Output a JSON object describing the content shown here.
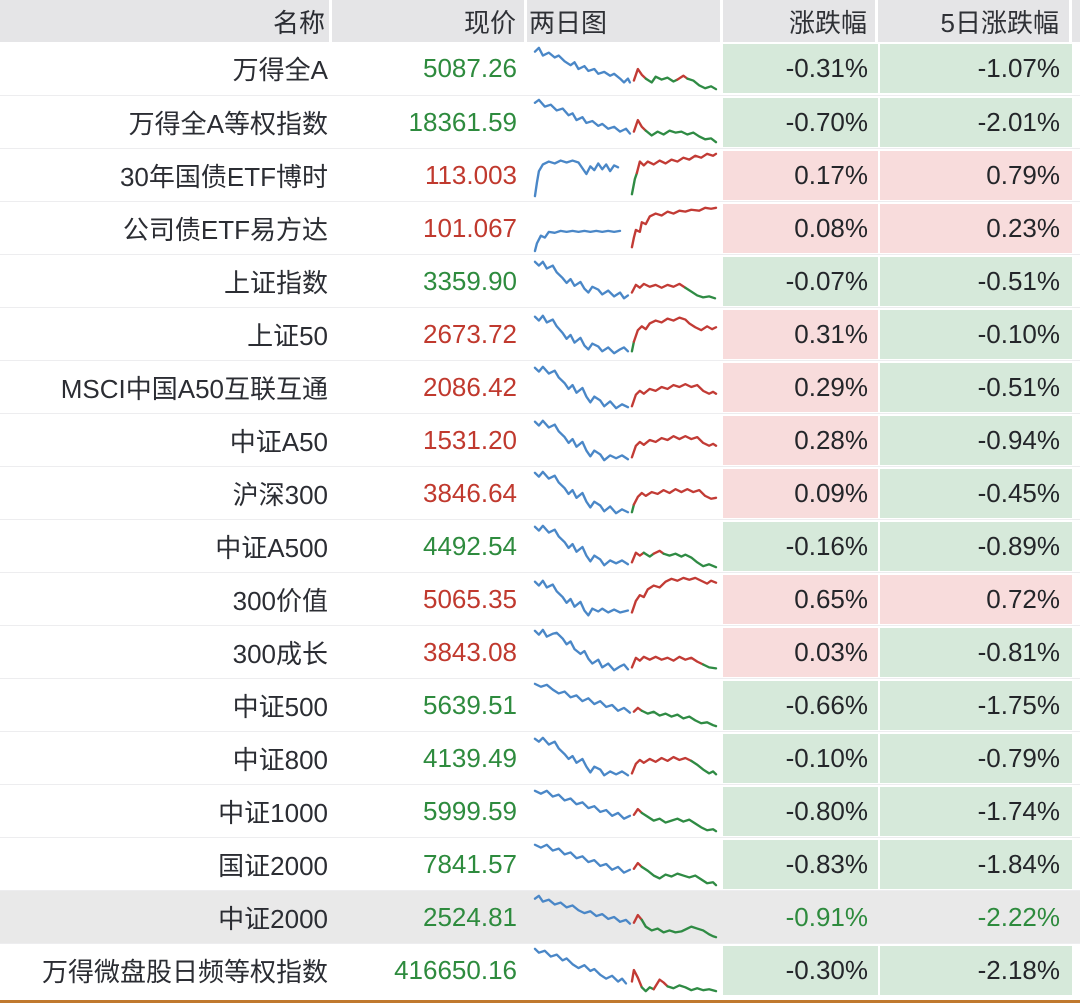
{
  "header": {
    "columns": [
      "名称",
      "现价",
      "两日图",
      "涨跌幅",
      "5日涨跌幅"
    ]
  },
  "colors": {
    "up_text": "#c0392e",
    "down_text": "#2e8b3e",
    "up_bg": "#f8dcdc",
    "down_bg": "#d6e9da",
    "header_bg": "#e5e5e7",
    "highlight_row_bg": "#e9e9e9",
    "bottom_border": "#c0792f",
    "spark_blue": "#4a87c7",
    "spark_red": "#c23b35",
    "spark_green": "#2f8b44"
  },
  "rows": [
    {
      "name": "万得全A",
      "price": "5087.26",
      "price_dir": "down",
      "chg": "-0.31%",
      "chg_dir": "down",
      "chg5": "-1.07%",
      "chg5_dir": "down",
      "highlighted": false,
      "spark": [
        {
          "c": "b",
          "p": "6,8 10,4 14,12 20,9 26,14 30,12 36,18 42,22 46,19 50,26 56,23 60,28 66,26 70,31 76,29 82,33 86,31 92,36 96,40 100,36 102,40"
        },
        {
          "c": "r",
          "p": "106,38 110,26 114,32 118,36"
        },
        {
          "c": "g",
          "p": "118,36 124,40 128,34 134,37 140,35 146,39 150,37"
        },
        {
          "c": "r",
          "p": "150,37 156,33 160,36"
        },
        {
          "c": "g",
          "p": "160,36 166,38 172,43 178,46 184,44 189,47"
        }
      ]
    },
    {
      "name": "万得全A等权指数",
      "price": "18361.59",
      "price_dir": "down",
      "chg": "-0.70%",
      "chg_dir": "down",
      "chg5": "-2.01%",
      "chg5_dir": "down",
      "highlighted": false,
      "spark": [
        {
          "c": "b",
          "p": "6,6 10,3 16,10 22,8 28,14 34,12 40,19 44,17 48,24 54,21 58,27 64,25 70,30 74,28 80,33 86,31 92,36 98,33 102,38"
        },
        {
          "c": "r",
          "p": "106,36 110,24 114,31 118,35"
        },
        {
          "c": "g",
          "p": "118,35 124,40 130,36 136,39 142,35 148,37 154,36 160,39 166,37 172,41 178,44 184,43 189,47"
        }
      ]
    },
    {
      "name": "30年国债ETF博时",
      "price": "113.003",
      "price_dir": "up",
      "chg": "0.17%",
      "chg_dir": "up",
      "chg5": "0.79%",
      "chg5_dir": "up",
      "highlighted": false,
      "spark": [
        {
          "c": "b",
          "p": "6,48 8,34 10,22 14,15 20,12 26,14 32,11 38,13 44,11 50,13 54,19 58,25 62,17 66,21 70,14 74,20 78,15 82,22 86,16 90,18"
        },
        {
          "c": "g",
          "p": "104,46 107,30 109,24"
        },
        {
          "c": "r",
          "p": "109,24 112,12 116,16 120,12 126,15 132,11 138,14 144,10 150,12 156,8 162,10 168,6 174,8 180,4 186,6 189,4"
        }
      ]
    },
    {
      "name": "公司债ETF易方达",
      "price": "101.067",
      "price_dir": "up",
      "chg": "0.08%",
      "chg_dir": "up",
      "chg5": "0.23%",
      "chg5_dir": "up",
      "highlighted": false,
      "spark": [
        {
          "c": "b",
          "p": "6,50 8,42 12,34 16,36 20,30 26,31 32,29 38,30 44,29 50,30 56,29 62,30 68,29 74,30 80,29 86,30 92,29"
        },
        {
          "c": "r",
          "p": "104,46 106,36 108,28 112,30 114,20 118,22 122,14 128,11 134,13 140,9 146,11 152,8 158,9 164,7 172,8 178,5 184,6 189,5"
        }
      ]
    },
    {
      "name": "上证指数",
      "price": "3359.90",
      "price_dir": "down",
      "chg": "-0.07%",
      "chg_dir": "down",
      "chg5": "-0.51%",
      "chg5_dir": "down",
      "highlighted": false,
      "spark": [
        {
          "c": "b",
          "p": "6,6 10,10 14,6 18,13 24,10 28,17 34,23 38,28 42,24 46,31 52,27 56,34 60,38 64,32 70,35 74,40 80,36 86,42 92,38 96,44 100,41"
        },
        {
          "c": "r",
          "p": "104,38 108,30 112,33 116,29 122,32 128,30 134,33 140,30 146,32 152,29 158,33"
        },
        {
          "c": "g",
          "p": "158,33 164,37 170,41 176,43 182,42 188,44"
        }
      ]
    },
    {
      "name": "上证50",
      "price": "2673.72",
      "price_dir": "up",
      "chg": "0.31%",
      "chg_dir": "up",
      "chg5": "-0.10%",
      "chg5_dir": "down",
      "highlighted": false,
      "spark": [
        {
          "c": "b",
          "p": "6,8 10,12 14,7 18,14 24,11 28,18 34,25 38,31 42,27 46,35 52,30 56,38 60,42 64,36 70,39 74,44 80,40 86,46 92,42 96,40 100,44"
        },
        {
          "c": "g",
          "p": "104,44 106,34"
        },
        {
          "c": "r",
          "p": "106,34 110,22 114,18 118,21 122,15 128,12 134,14 140,10 146,12 152,9 158,11 162,15 168,19 174,22 180,18 185,21 189,19"
        }
      ]
    },
    {
      "name": "MSCI中国A50互联互通",
      "price": "2086.42",
      "price_dir": "up",
      "chg": "0.29%",
      "chg_dir": "up",
      "chg5": "-0.51%",
      "chg5_dir": "down",
      "highlighted": false,
      "spark": [
        {
          "c": "b",
          "p": "6,6 10,10 14,5 20,12 26,9 30,16 36,22 40,28 44,24 48,32 54,27 58,36 62,42 66,36 72,40 76,46 82,41 88,48 94,44 100,47"
        },
        {
          "c": "r",
          "p": "104,46 108,34 112,30 116,33 122,28 128,30 134,26 140,28 146,24 152,26 158,23 164,26 170,24 176,30 182,33 186,31 189,33"
        }
      ]
    },
    {
      "name": "中证A50",
      "price": "1531.20",
      "price_dir": "up",
      "chg": "0.28%",
      "chg_dir": "up",
      "chg5": "-0.94%",
      "chg5_dir": "down",
      "highlighted": false,
      "spark": [
        {
          "c": "b",
          "p": "6,7 10,11 14,6 20,13 26,10 30,17 36,23 40,29 44,25 48,33 54,28 58,37 62,43 66,37 72,41 76,47 82,42 88,45 94,42 100,46"
        },
        {
          "c": "r",
          "p": "104,44 108,32 112,28 116,31 122,26 128,28 134,24 140,26 146,22 152,25 158,22 164,25 170,23 176,29 182,32 186,30 189,32"
        }
      ]
    },
    {
      "name": "沪深300",
      "price": "3846.64",
      "price_dir": "up",
      "chg": "0.09%",
      "chg_dir": "up",
      "chg5": "-0.45%",
      "chg5_dir": "down",
      "highlighted": false,
      "spark": [
        {
          "c": "b",
          "p": "6,5 10,9 14,4 20,11 26,8 30,15 36,21 40,27 44,23 48,31 54,26 58,35 62,41 66,35 72,39 76,45 82,40 88,47 94,43 100,46"
        },
        {
          "c": "g",
          "p": "104,46 106,38"
        },
        {
          "c": "r",
          "p": "106,38 110,30 114,26 118,29 124,25 130,27 136,23 142,26 148,22 154,25 160,22 166,25 172,23 178,29 184,32 189,31"
        }
      ]
    },
    {
      "name": "中证A500",
      "price": "4492.54",
      "price_dir": "down",
      "chg": "-0.16%",
      "chg_dir": "down",
      "chg5": "-0.89%",
      "chg5_dir": "down",
      "highlighted": false,
      "spark": [
        {
          "c": "b",
          "p": "6,6 10,10 14,5 20,12 26,9 30,16 36,22 40,28 44,24 48,32 54,27 58,36 62,42 66,36 72,40 76,46 82,41 88,44 94,41 100,45"
        },
        {
          "c": "r",
          "p": "104,43 108,33 112,36 116,33"
        },
        {
          "c": "g",
          "p": "116,33 122,37 126,34"
        },
        {
          "c": "r",
          "p": "126,34 132,31 136,34"
        },
        {
          "c": "g",
          "p": "136,34 142,36 148,34 154,37 158,35 164,38 170,43 176,47 182,45 189,48"
        }
      ]
    },
    {
      "name": "300价值",
      "price": "5065.35",
      "price_dir": "up",
      "chg": "0.65%",
      "chg_dir": "up",
      "chg5": "0.72%",
      "chg5_dir": "up",
      "highlighted": false,
      "spark": [
        {
          "c": "b",
          "p": "6,8 10,12 14,7 18,14 24,11 28,18 34,24 38,30 42,26 46,34 52,29 56,38 60,43 64,36 70,39 74,36 80,40 86,37 92,40 100,38"
        },
        {
          "c": "r",
          "p": "104,40 108,28 112,22 116,24 120,16 126,12 132,14 138,8 144,5 150,7 156,4 162,6 168,4 174,7 180,10 184,7 189,9"
        }
      ]
    },
    {
      "name": "300成长",
      "price": "3843.08",
      "price_dir": "up",
      "chg": "0.03%",
      "chg_dir": "up",
      "chg5": "-0.81%",
      "chg5_dir": "down",
      "highlighted": false,
      "spark": [
        {
          "c": "b",
          "p": "6,4 10,8 14,3 18,10 24,7 28,6 34,12 38,18 42,15 46,23 52,28 56,25 60,33 64,38 70,34 74,42 80,38 86,45 92,41 96,39 100,44"
        },
        {
          "c": "r",
          "p": "104,42 108,32 112,35 116,31 122,34 128,31 134,34 140,32 146,35 152,31 158,34 164,32 170,36 176,39"
        },
        {
          "c": "g",
          "p": "176,39 182,42 189,43"
        }
      ]
    },
    {
      "name": "中证500",
      "price": "5639.51",
      "price_dir": "down",
      "chg": "-0.66%",
      "chg_dir": "down",
      "chg5": "-1.75%",
      "chg5_dir": "down",
      "highlighted": false,
      "spark": [
        {
          "c": "b",
          "p": "6,4 12,7 18,5 24,10 30,14 36,12 42,18 48,16 54,22 60,19 66,25 72,22 78,28 84,26 90,32 96,29 102,34"
        },
        {
          "c": "r",
          "p": "106,33 110,29 114,32"
        },
        {
          "c": "g",
          "p": "114,32 120,35 126,33 132,37 138,35 144,38 150,36 156,40 162,38 168,42 174,45 180,44 186,47 189,48"
        }
      ]
    },
    {
      "name": "中证800",
      "price": "4139.49",
      "price_dir": "down",
      "chg": "-0.10%",
      "chg_dir": "down",
      "chg5": "-0.79%",
      "chg5_dir": "down",
      "highlighted": false,
      "spark": [
        {
          "c": "b",
          "p": "6,6 10,9 14,5 20,12 26,9 30,16 36,22 40,27 44,24 48,31 54,27 58,35 62,41 66,35 72,38 76,44 82,40 88,43 94,40 100,44"
        },
        {
          "c": "r",
          "p": "104,42 108,32 112,28 116,31 122,27 128,30 134,26 140,29 146,25 152,28 158,26 164,29"
        },
        {
          "c": "g",
          "p": "164,29 170,33 176,38 182,42 186,40 189,43"
        }
      ]
    },
    {
      "name": "中证1000",
      "price": "5999.59",
      "price_dir": "down",
      "chg": "-0.80%",
      "chg_dir": "down",
      "chg5": "-1.74%",
      "chg5_dir": "down",
      "highlighted": false,
      "spark": [
        {
          "c": "b",
          "p": "6,5 12,8 18,5 24,11 30,9 36,15 42,13 48,19 54,17 60,23 66,21 72,27 78,25 84,31 90,28 96,34 102,31"
        },
        {
          "c": "r",
          "p": "106,30 110,24 114,28"
        },
        {
          "c": "g",
          "p": "114,28 120,32 126,36 132,34 138,38 144,36 150,34 156,37 162,35 168,39 174,43 180,46 186,45 189,47"
        }
      ]
    },
    {
      "name": "国证2000",
      "price": "7841.57",
      "price_dir": "down",
      "chg": "-0.83%",
      "chg_dir": "down",
      "chg5": "-1.84%",
      "chg5_dir": "down",
      "highlighted": false,
      "spark": [
        {
          "c": "b",
          "p": "6,6 12,9 18,6 24,12 30,10 36,16 42,14 48,20 54,18 60,24 66,22 72,28 78,26 84,32 90,29 96,35 102,32"
        },
        {
          "c": "r",
          "p": "106,31 110,25 114,29"
        },
        {
          "c": "g",
          "p": "114,29 120,33 126,38 132,41 138,37 144,39 150,36 156,38 162,40 168,38 174,42 180,46 186,45 189,48"
        }
      ]
    },
    {
      "name": "中证2000",
      "price": "2524.81",
      "price_dir": "down",
      "chg": "-0.91%",
      "chg_dir": "down",
      "chg5": "-2.22%",
      "chg5_dir": "down",
      "highlighted": true,
      "spark": [
        {
          "c": "b",
          "p": "6,7 10,4 14,10 20,8 26,13 32,11 38,16 44,14 50,19 56,22 62,20 68,25 74,23 80,28 86,26 92,31 98,29 102,33"
        },
        {
          "c": "r",
          "p": "106,32 110,24 114,29"
        },
        {
          "c": "g",
          "p": "114,29 118,36 124,40 130,38 136,42 142,40 148,42 154,41 160,38 164,36 170,38 176,40 182,44 186,46 189,47"
        }
      ]
    },
    {
      "name": "万得微盘股日频等权指数",
      "price": "416650.16",
      "price_dir": "down",
      "chg": "-0.30%",
      "chg_dir": "down",
      "chg5": "-2.18%",
      "chg5_dir": "down",
      "highlighted": false,
      "spark": [
        {
          "c": "b",
          "p": "6,4 10,8 16,6 22,12 28,10 34,16 38,14 44,20 50,24 56,21 62,27 66,25 72,31 78,35 84,32 90,38 94,35 98,40"
        },
        {
          "c": "r",
          "p": "104,38 106,26 110,34 114,44"
        },
        {
          "c": "g",
          "p": "114,44 118,48 122,44 126,46"
        },
        {
          "c": "r",
          "p": "126,46 132,36 136,39 140,43"
        },
        {
          "c": "g",
          "p": "140,43 146,45 152,42 158,44 164,47 170,45 176,47 182,46 189,48"
        }
      ]
    }
  ]
}
